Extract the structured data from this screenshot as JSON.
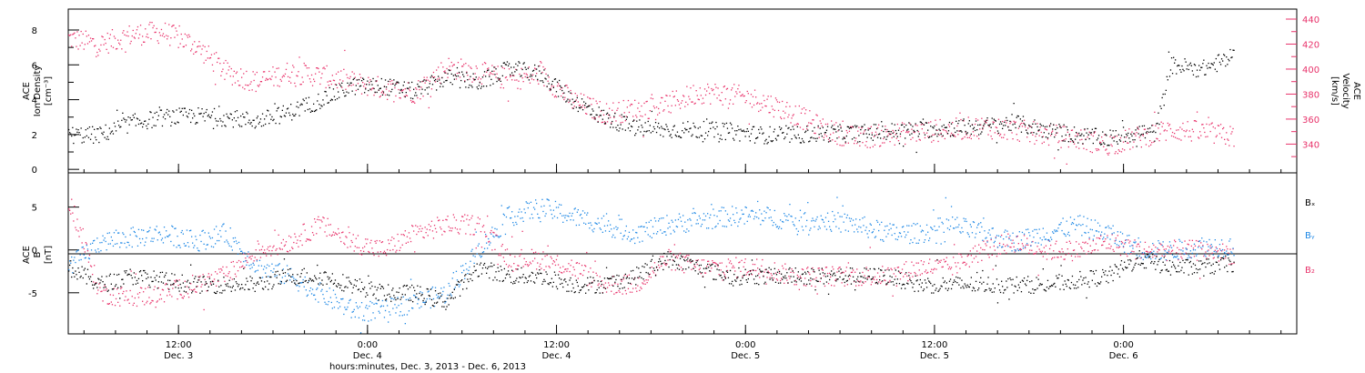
{
  "colors": {
    "black": "#000000",
    "red": "#e8336b",
    "blue": "#1e88e5"
  },
  "chart_data": [
    {
      "type": "scatter",
      "panel": "top",
      "y_left_label": [
        "ACE",
        "Ion Density",
        "[cm⁻³]"
      ],
      "y_right_label": [
        "ACE",
        "Velocity",
        "[km/s]"
      ],
      "ylim_left": [
        -0.2,
        9.2
      ],
      "ylim_right": [
        317,
        448
      ],
      "y_left_ticks": [
        0,
        2,
        4,
        6,
        8
      ],
      "y_right_ticks": [
        340,
        360,
        380,
        400,
        420,
        440
      ],
      "xlim_hours": [
        0,
        78
      ],
      "series": [
        {
          "axis": "left",
          "color": "black",
          "x": [
            0,
            2,
            4,
            6,
            8,
            10,
            12,
            14,
            16,
            18,
            20,
            22,
            24,
            26,
            28,
            30,
            32,
            34,
            36,
            38,
            40,
            42,
            44,
            46,
            48,
            50,
            52,
            54,
            56,
            58,
            60,
            62,
            64,
            66,
            68,
            69,
            70,
            72,
            74
          ],
          "values": [
            2.0,
            2.0,
            2.7,
            3.0,
            3.1,
            3.0,
            2.8,
            3.3,
            4.0,
            4.8,
            4.8,
            4.5,
            5.3,
            5.0,
            5.8,
            5.5,
            4.0,
            3.0,
            2.4,
            2.3,
            2.3,
            2.2,
            2.0,
            2.0,
            2.1,
            2.1,
            2.2,
            2.3,
            2.4,
            2.5,
            2.7,
            2.3,
            2.0,
            1.8,
            2.2,
            2.1,
            6.0,
            5.8,
            6.5
          ],
          "spread": 0.5
        },
        {
          "axis": "right",
          "color": "red",
          "x": [
            0,
            2,
            4,
            6,
            8,
            10,
            12,
            14,
            16,
            18,
            20,
            22,
            24,
            26,
            28,
            30,
            32,
            34,
            36,
            38,
            40,
            42,
            44,
            46,
            48,
            50,
            52,
            54,
            56,
            58,
            60,
            62,
            64,
            66,
            68,
            70,
            72,
            74
          ],
          "values": [
            425,
            420,
            428,
            430,
            420,
            398,
            390,
            398,
            395,
            390,
            385,
            382,
            402,
            398,
            392,
            396,
            375,
            365,
            368,
            372,
            382,
            380,
            375,
            365,
            352,
            345,
            348,
            350,
            352,
            354,
            352,
            348,
            345,
            340,
            346,
            352,
            350,
            346
          ],
          "spread": 9
        }
      ]
    },
    {
      "type": "scatter",
      "panel": "bottom",
      "y_label": [
        "ACE",
        "B",
        "[nT]"
      ],
      "ylim": [
        -9.8,
        9.0
      ],
      "y_ticks": [
        -5,
        0,
        5
      ],
      "xlim_hours": [
        0,
        78
      ],
      "x_ticks": [
        {
          "hour": 7,
          "time": "12:00",
          "date": "Dec. 3"
        },
        {
          "hour": 19,
          "time": "0:00",
          "date": "Dec. 4"
        },
        {
          "hour": 31,
          "time": "12:00",
          "date": "Dec. 4"
        },
        {
          "hour": 43,
          "time": "0:00",
          "date": "Dec. 5"
        },
        {
          "hour": 55,
          "time": "12:00",
          "date": "Dec. 5"
        },
        {
          "hour": 67,
          "time": "0:00",
          "date": "Dec. 6"
        }
      ],
      "x_label": "hours:minutes, Dec.  3, 2013 - Dec.  6, 2013",
      "series": [
        {
          "name": "Bₓ",
          "color": "black",
          "x": [
            0,
            2,
            4,
            6,
            8,
            10,
            12,
            14,
            16,
            18,
            20,
            22,
            24,
            26,
            28,
            30,
            32,
            34,
            36,
            38,
            40,
            42,
            44,
            46,
            48,
            50,
            52,
            54,
            56,
            58,
            60,
            62,
            64,
            66,
            68,
            70,
            72,
            74
          ],
          "values": [
            -2,
            -4,
            -3,
            -3.5,
            -4,
            -4,
            -4,
            -3,
            -3,
            -4,
            -5,
            -5,
            -6,
            -2,
            -3,
            -3,
            -4,
            -4,
            -3,
            -1,
            -2,
            -3,
            -3,
            -3,
            -3,
            -3,
            -3,
            -4,
            -4,
            -4,
            -4,
            -4,
            -3.5,
            -3,
            -1,
            -2,
            -2,
            -1.5
          ],
          "spread": 1.0
        },
        {
          "name": "Bᵧ",
          "color": "blue",
          "x": [
            0,
            2,
            4,
            6,
            8,
            10,
            12,
            14,
            16,
            18,
            20,
            22,
            24,
            26,
            28,
            30,
            32,
            34,
            36,
            38,
            40,
            42,
            44,
            46,
            48,
            50,
            52,
            54,
            56,
            58,
            60,
            62,
            64,
            66,
            68,
            70,
            72,
            74
          ],
          "values": [
            -2,
            1,
            1.5,
            2,
            1,
            2,
            -2,
            -3,
            -5,
            -7,
            -7,
            -6,
            -5,
            0,
            4,
            5,
            4,
            3,
            2,
            3,
            3.5,
            4,
            4,
            3.5,
            3.5,
            3,
            2,
            2,
            3,
            2,
            1,
            2,
            3,
            2,
            0,
            0,
            0.5,
            0.5
          ],
          "spread": 1.2
        },
        {
          "name": "B₂",
          "color": "red",
          "x": [
            0,
            2,
            4,
            6,
            8,
            10,
            12,
            14,
            16,
            18,
            20,
            22,
            24,
            26,
            28,
            30,
            32,
            34,
            36,
            38,
            40,
            42,
            44,
            46,
            48,
            50,
            52,
            54,
            56,
            58,
            60,
            62,
            64,
            66,
            68,
            70,
            72,
            74
          ],
          "values": [
            6,
            -5,
            -5.5,
            -5,
            -4,
            -3,
            0,
            1,
            3,
            1,
            0,
            2,
            3,
            3,
            -1,
            -1,
            -2,
            -4,
            -4,
            -1,
            -2,
            -2,
            -2,
            -3,
            -3,
            -3,
            -3,
            -2,
            -2,
            0,
            1,
            0,
            0,
            1,
            0,
            0,
            0,
            -0.5
          ],
          "spread": 1.2
        }
      ]
    }
  ]
}
